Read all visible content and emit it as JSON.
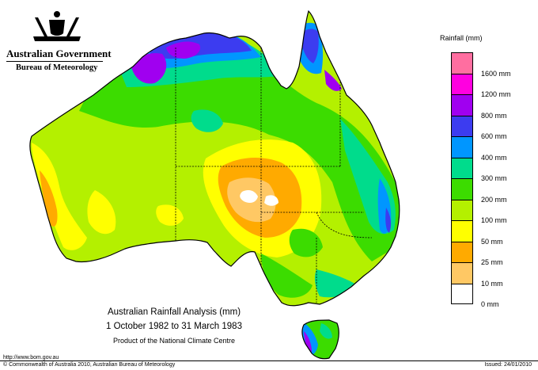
{
  "agency": {
    "government": "Australian Government",
    "bureau": "Bureau of Meteorology"
  },
  "legend": {
    "title": "Rainfall (mm)",
    "classes": [
      {
        "label": "",
        "color": "#ff6ea0"
      },
      {
        "label": "1600 mm",
        "color": "#ff00e0"
      },
      {
        "label": "1200 mm",
        "color": "#a000f0"
      },
      {
        "label": "800 mm",
        "color": "#3c3cf0"
      },
      {
        "label": "600 mm",
        "color": "#0096ff"
      },
      {
        "label": "400 mm",
        "color": "#00dc8c"
      },
      {
        "label": "300 mm",
        "color": "#3cdc00"
      },
      {
        "label": "200 mm",
        "color": "#b4f000"
      },
      {
        "label": "100 mm",
        "color": "#ffff00"
      },
      {
        "label": "50 mm",
        "color": "#ffaa00"
      },
      {
        "label": "25 mm",
        "color": "#ffc864"
      },
      {
        "label": "10 mm",
        "color": "#ffffff"
      },
      {
        "label": "0 mm",
        "color": "#ffffff"
      }
    ]
  },
  "caption": {
    "title": "Australian Rainfall Analysis (mm)",
    "period": "1 October 1982 to 31 March 1983",
    "product": "Product of the National Climate Centre"
  },
  "footer": {
    "url": "http://www.bom.gov.au",
    "copyright": "© Commonwealth of Australia 2010, Australian Bureau of Meteorology",
    "issued": "Issued: 24/01/2010"
  },
  "map": {
    "palette": {
      "land_base": "#b4f000",
      "wet_green": "#3cdc00",
      "teal": "#00dc8c",
      "blue": "#0096ff",
      "indigo": "#3c3cf0",
      "purple": "#a000f0",
      "yellow": "#ffff00",
      "orange": "#ffaa00",
      "light_orange": "#ffc864",
      "dry_white": "#ffffff",
      "outline": "#000000"
    }
  }
}
